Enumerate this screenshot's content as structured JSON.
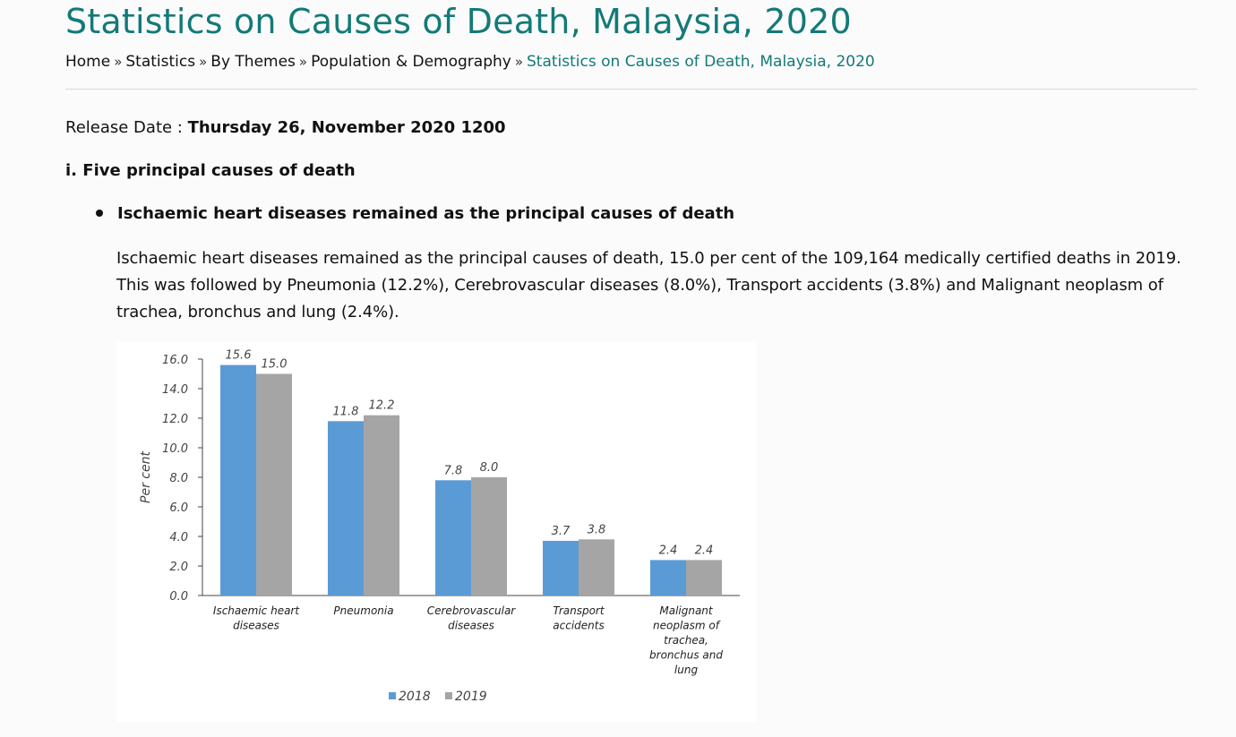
{
  "page": {
    "title": "Statistics on Causes of Death, Malaysia, 2020"
  },
  "breadcrumb": {
    "items": [
      "Home",
      "Statistics",
      "By Themes",
      "Population & Demography"
    ],
    "separator": "»",
    "current": "Statistics on Causes of Death, Malaysia, 2020"
  },
  "release": {
    "label": "Release Date : ",
    "value": "Thursday 26, November 2020 1200"
  },
  "section": {
    "heading": "i. Five principal causes of death",
    "bullet": "Ischaemic heart diseases remained as the principal causes of death",
    "paragraph": "Ischaemic heart diseases remained as the principal causes of death, 15.0 per cent of the 109,164 medically certified deaths in 2019. This was followed by Pneumonia (12.2%), Cerebrovascular diseases (8.0%), Transport accidents (3.8%) and Malignant neoplasm of trachea, bronchus and lung (2.4%)."
  },
  "chart_data": {
    "type": "bar",
    "title": "",
    "xlabel": "",
    "ylabel": "Per cent",
    "ylim": [
      0,
      16
    ],
    "yticks": [
      "0.0",
      "2.0",
      "4.0",
      "6.0",
      "8.0",
      "10.0",
      "12.0",
      "14.0",
      "16.0"
    ],
    "categories": [
      [
        "Ischaemic heart",
        "diseases"
      ],
      [
        "Pneumonia"
      ],
      [
        "Cerebrovascular",
        "diseases"
      ],
      [
        "Transport",
        "accidents"
      ],
      [
        "Malignant",
        "neoplasm of",
        "trachea,",
        "bronchus and",
        "lung"
      ]
    ],
    "series": [
      {
        "name": "2018",
        "color": "#5b9bd5",
        "values": [
          15.6,
          11.8,
          7.8,
          3.7,
          2.4
        ],
        "labels": [
          "15.6",
          "11.8",
          "7.8",
          "3.7",
          "2.4"
        ]
      },
      {
        "name": "2019",
        "color": "#a5a5a5",
        "values": [
          15.0,
          12.2,
          8.0,
          3.8,
          2.4
        ],
        "labels": [
          "15.0",
          "12.2",
          "8.0",
          "3.8",
          "2.4"
        ]
      }
    ],
    "legend": "bottom",
    "grid": false
  }
}
